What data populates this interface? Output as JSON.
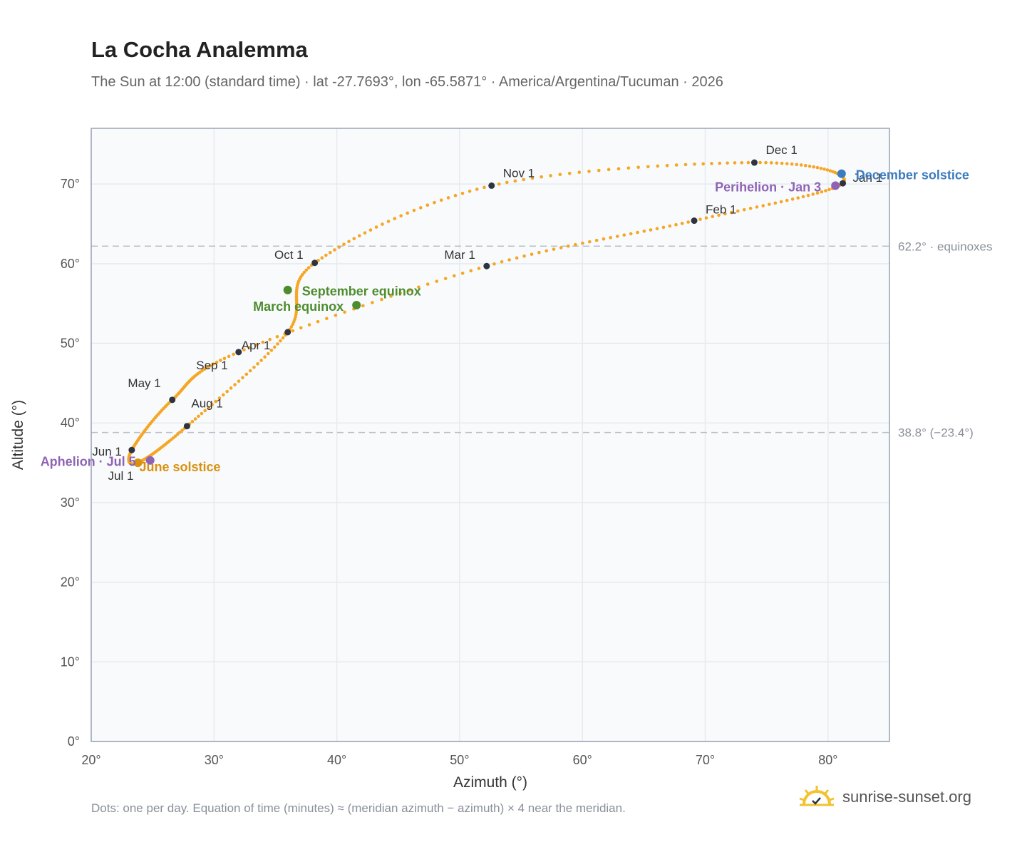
{
  "header": {
    "title": "La Cocha Analemma",
    "subtitle": "The Sun at 12:00 (standard time) · lat -27.7693°, lon -65.5871° · America/Argentina/Tucuman · 2026"
  },
  "footer": {
    "note": "Dots: one per day. Equation of time (minutes) ≈ (meridian azimuth − azimuth) × 4 near the meridian.",
    "brand": "sunrise-sunset.org"
  },
  "chart_data": {
    "type": "scatter",
    "xlabel": "Azimuth (°)",
    "ylabel": "Altitude (°)",
    "xlim": [
      20,
      85
    ],
    "ylim": [
      0,
      77
    ],
    "x_ticks": [
      20,
      30,
      40,
      50,
      60,
      70,
      80
    ],
    "y_ticks": [
      0,
      10,
      20,
      30,
      40,
      50,
      60,
      70
    ],
    "x_tick_labels": [
      "20°",
      "30°",
      "40°",
      "50°",
      "60°",
      "70°",
      "80°"
    ],
    "y_tick_labels": [
      "0°",
      "10°",
      "20°",
      "30°",
      "40°",
      "50°",
      "60°",
      "70°"
    ],
    "grid": true,
    "colors": {
      "path": "#f5a623",
      "month_marker": "#2d3440",
      "equinox": "#4e8c2e",
      "june_solstice": "#d9920f",
      "december_solstice": "#3b7bbf",
      "apsis": "#8e63b5",
      "reference_line": "#b8c0c8",
      "plot_background": "#f8fafc"
    },
    "reference_lines": [
      {
        "y": 62.2,
        "label": "62.2° · equinoxes"
      },
      {
        "y": 38.8,
        "label": "38.8° (−23.4°)"
      }
    ],
    "month_markers": [
      {
        "label": "Jan 1",
        "x": 81.2,
        "y": 70.1
      },
      {
        "label": "Feb 1",
        "x": 69.1,
        "y": 65.4
      },
      {
        "label": "Mar 1",
        "x": 52.2,
        "y": 59.7
      },
      {
        "label": "Apr 1",
        "x": 32.0,
        "y": 48.9
      },
      {
        "label": "May 1",
        "x": 26.6,
        "y": 42.9
      },
      {
        "label": "Jun 1",
        "x": 23.3,
        "y": 36.6
      },
      {
        "label": "Jul 1",
        "x": 23.8,
        "y": 35.0
      },
      {
        "label": "Aug 1",
        "x": 27.8,
        "y": 39.6
      },
      {
        "label": "Sep 1",
        "x": 36.0,
        "y": 51.4
      },
      {
        "label": "Oct 1",
        "x": 38.2,
        "y": 60.1
      },
      {
        "label": "Nov 1",
        "x": 52.6,
        "y": 69.8
      },
      {
        "label": "Dec 1",
        "x": 74.0,
        "y": 72.7
      }
    ],
    "events": [
      {
        "label": "March equinox",
        "x": 41.6,
        "y": 54.8,
        "color": "#4e8c2e"
      },
      {
        "label": "September equinox",
        "x": 36.0,
        "y": 56.7,
        "color": "#4e8c2e"
      },
      {
        "label": "June solstice",
        "x": 23.8,
        "y": 35.0,
        "color": "#d9920f"
      },
      {
        "label": "December solstice",
        "x": 81.1,
        "y": 71.3,
        "color": "#3b7bbf"
      },
      {
        "label": "Perihelion · Jan 3",
        "x": 80.6,
        "y": 69.8,
        "color": "#8e63b5"
      },
      {
        "label": "Aphelion · Jul 5",
        "x": 24.8,
        "y": 35.3,
        "color": "#8e63b5"
      }
    ]
  }
}
